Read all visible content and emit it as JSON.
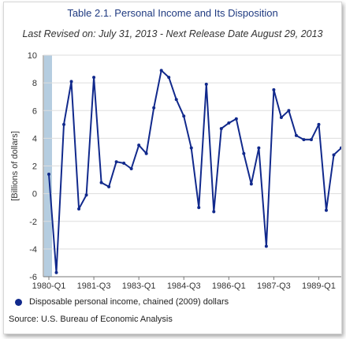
{
  "chart_data": {
    "type": "line",
    "title": "Table 2.1. Personal Income and Its Disposition",
    "subtitle": "Last Revised on: July 31, 2013 - Next Release Date August 29, 2013",
    "ylabel": "[Billions of dollars]",
    "xlabel": "",
    "ylim": [
      -6,
      10
    ],
    "yticks": [
      "10",
      "8",
      "6",
      "4",
      "2",
      "0",
      "-2",
      "-4",
      "-6"
    ],
    "xtick_labels": [
      "1980-Q1",
      "1981-Q3",
      "1983-Q1",
      "1984-Q3",
      "1986-Q1",
      "1987-Q3",
      "1989-Q1"
    ],
    "grid": true,
    "legend_position": "bottom-left",
    "series": [
      {
        "name": "Disposable personal income, chained (2009) dollars",
        "color": "#11298c",
        "values": [
          1.4,
          -5.7,
          5.0,
          8.1,
          -1.1,
          -0.1,
          8.4,
          0.8,
          0.5,
          2.3,
          2.2,
          1.8,
          3.5,
          2.9,
          6.2,
          8.9,
          8.4,
          6.8,
          5.6,
          3.3,
          -1.0,
          7.9,
          -1.3,
          4.7,
          5.1,
          5.4,
          2.9,
          0.7,
          3.3,
          -3.8,
          7.5,
          5.5,
          6.0,
          4.2,
          3.9,
          3.9,
          5.0,
          -1.2,
          2.8,
          3.3
        ]
      }
    ]
  },
  "source": "Source: U.S. Bureau of Economic Analysis"
}
